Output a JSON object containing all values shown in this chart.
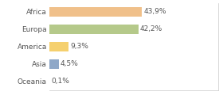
{
  "categories": [
    "Africa",
    "Europa",
    "America",
    "Asia",
    "Oceania"
  ],
  "values": [
    43.9,
    42.2,
    9.3,
    4.5,
    0.1
  ],
  "labels": [
    "43,9%",
    "42,2%",
    "9,3%",
    "4,5%",
    "0,1%"
  ],
  "bar_colors": [
    "#f0c08a",
    "#b5c98a",
    "#f5d06e",
    "#8fa8c8",
    "#eeeeee"
  ],
  "background_color": "#ffffff",
  "xlim": [
    0,
    80
  ],
  "label_fontsize": 6.5,
  "tick_fontsize": 6.5,
  "bar_height": 0.55
}
